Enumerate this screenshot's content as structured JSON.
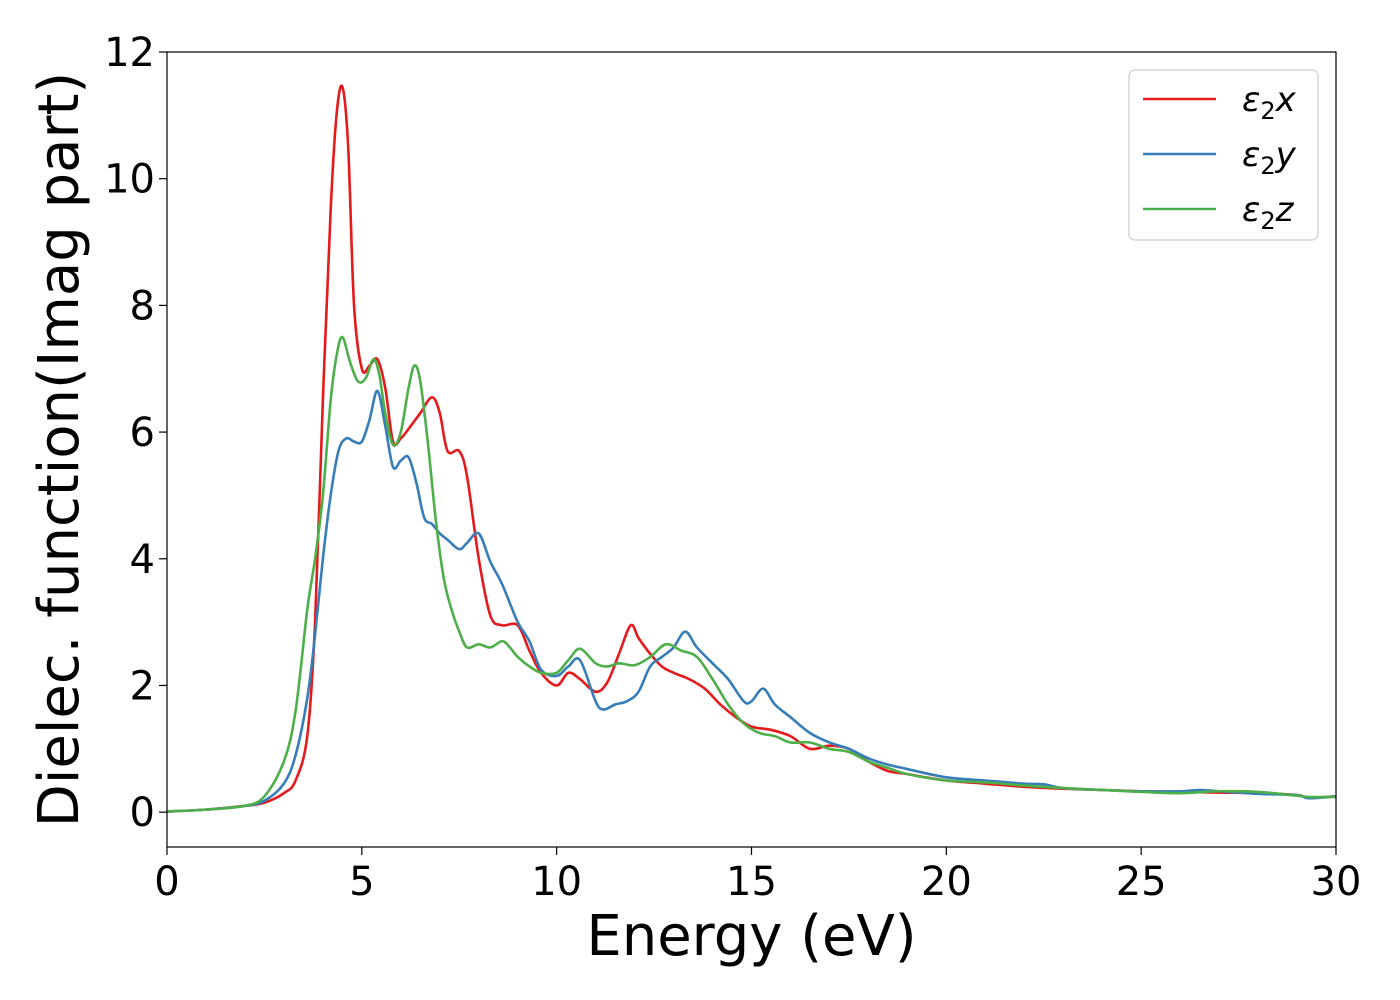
{
  "chart_data": {
    "type": "line",
    "title": "",
    "xlabel": "Energy (eV)",
    "ylabel": "Dielec. function(Imag part)",
    "xlim": [
      0,
      30
    ],
    "ylim": [
      -0.55,
      12
    ],
    "xticks": [
      "0",
      "5",
      "10",
      "15",
      "20",
      "25",
      "30"
    ],
    "yticks": [
      "0",
      "2",
      "4",
      "6",
      "8",
      "10",
      "12"
    ],
    "grid": false,
    "legend_position": "top-right",
    "series": [
      {
        "name": "ε₂x",
        "legend_base": "ε",
        "legend_sub": "2",
        "legend_suffix": "x",
        "color": "#e41a1c",
        "x": [
          0,
          1,
          2,
          2.5,
          3,
          3.3,
          3.6,
          3.8,
          4.0,
          4.2,
          4.35,
          4.5,
          4.65,
          4.8,
          5.0,
          5.2,
          5.4,
          5.6,
          5.8,
          6.0,
          6.2,
          6.5,
          6.8,
          7.0,
          7.2,
          7.5,
          7.7,
          8.0,
          8.3,
          8.6,
          9.0,
          9.3,
          9.6,
          10.0,
          10.3,
          10.6,
          11.0,
          11.3,
          11.6,
          11.9,
          12.1,
          12.4,
          12.7,
          13.0,
          13.4,
          13.8,
          14.2,
          14.6,
          15.0,
          15.5,
          16.0,
          16.5,
          17.0,
          17.5,
          18.0,
          18.5,
          19.0,
          20.0,
          21.0,
          22.0,
          23.0,
          24.0,
          25.0,
          26.0,
          27.0,
          28.0,
          29.0,
          29.3,
          30.0
        ],
        "y": [
          0.01,
          0.04,
          0.1,
          0.15,
          0.3,
          0.5,
          1.2,
          3.0,
          6.5,
          9.5,
          11.0,
          11.45,
          10.5,
          8.0,
          7.0,
          7.05,
          7.15,
          6.7,
          5.85,
          5.9,
          6.05,
          6.3,
          6.55,
          6.3,
          5.7,
          5.7,
          5.3,
          4.0,
          3.1,
          2.95,
          2.95,
          2.55,
          2.2,
          2.0,
          2.2,
          2.1,
          1.9,
          2.05,
          2.5,
          2.95,
          2.75,
          2.5,
          2.3,
          2.2,
          2.1,
          1.95,
          1.7,
          1.5,
          1.35,
          1.3,
          1.2,
          1.0,
          1.05,
          1.0,
          0.8,
          0.65,
          0.6,
          0.5,
          0.45,
          0.4,
          0.37,
          0.35,
          0.33,
          0.32,
          0.31,
          0.3,
          0.27,
          0.23,
          0.25
        ]
      },
      {
        "name": "ε₂y",
        "legend_base": "ε",
        "legend_sub": "2",
        "legend_suffix": "y",
        "color": "#377eb8",
        "x": [
          0,
          1,
          2,
          2.5,
          3,
          3.3,
          3.6,
          3.8,
          4.0,
          4.2,
          4.4,
          4.6,
          4.8,
          5.0,
          5.2,
          5.4,
          5.6,
          5.8,
          6.0,
          6.2,
          6.4,
          6.6,
          6.8,
          7.0,
          7.2,
          7.5,
          7.7,
          8.0,
          8.3,
          8.6,
          9.0,
          9.3,
          9.6,
          10.0,
          10.3,
          10.6,
          11.0,
          11.2,
          11.5,
          11.8,
          12.1,
          12.4,
          12.7,
          13.0,
          13.3,
          13.6,
          14.0,
          14.4,
          14.8,
          15.0,
          15.3,
          15.6,
          16.0,
          16.5,
          17.0,
          17.5,
          18.0,
          18.5,
          19.0,
          20.0,
          21.0,
          22.0,
          22.5,
          23.0,
          24.0,
          25.0,
          26.0,
          26.5,
          27.0,
          28.0,
          29.0,
          29.3,
          30.0
        ],
        "y": [
          0.01,
          0.04,
          0.1,
          0.18,
          0.45,
          0.9,
          1.8,
          2.8,
          4.0,
          5.0,
          5.7,
          5.9,
          5.85,
          5.85,
          6.2,
          6.65,
          6.1,
          5.45,
          5.55,
          5.6,
          5.2,
          4.65,
          4.55,
          4.4,
          4.3,
          4.15,
          4.25,
          4.4,
          3.95,
          3.6,
          3.0,
          2.7,
          2.25,
          2.15,
          2.3,
          2.4,
          1.75,
          1.62,
          1.7,
          1.75,
          1.9,
          2.3,
          2.45,
          2.6,
          2.85,
          2.6,
          2.35,
          2.1,
          1.75,
          1.75,
          1.95,
          1.7,
          1.5,
          1.25,
          1.1,
          1.0,
          0.85,
          0.75,
          0.68,
          0.55,
          0.5,
          0.45,
          0.44,
          0.38,
          0.35,
          0.33,
          0.33,
          0.35,
          0.33,
          0.29,
          0.27,
          0.22,
          0.25
        ]
      },
      {
        "name": "ε₂z",
        "legend_base": "ε",
        "legend_sub": "2",
        "legend_suffix": "z",
        "color": "#4daf4a",
        "x": [
          0,
          1,
          2,
          2.5,
          3,
          3.3,
          3.6,
          3.8,
          4.0,
          4.2,
          4.35,
          4.5,
          4.7,
          4.9,
          5.1,
          5.3,
          5.45,
          5.6,
          5.8,
          6.0,
          6.2,
          6.35,
          6.5,
          6.7,
          6.9,
          7.1,
          7.3,
          7.5,
          7.7,
          8.0,
          8.3,
          8.6,
          8.8,
          9.0,
          9.3,
          9.6,
          10.0,
          10.3,
          10.6,
          11.0,
          11.3,
          11.6,
          12.0,
          12.4,
          12.8,
          13.2,
          13.6,
          14.0,
          14.4,
          14.8,
          15.2,
          15.6,
          16.0,
          16.5,
          17.0,
          17.5,
          18.0,
          18.5,
          19.0,
          20.0,
          21.0,
          22.0,
          23.0,
          24.0,
          25.0,
          26.0,
          27.0,
          28.0,
          29.0,
          29.3,
          30.0
        ],
        "y": [
          0.01,
          0.04,
          0.1,
          0.25,
          0.8,
          1.6,
          3.2,
          4.0,
          5.0,
          6.5,
          7.2,
          7.5,
          7.1,
          6.8,
          6.85,
          7.15,
          6.9,
          6.3,
          5.8,
          6.0,
          6.7,
          7.05,
          6.8,
          5.8,
          4.6,
          3.7,
          3.2,
          2.85,
          2.6,
          2.65,
          2.6,
          2.7,
          2.6,
          2.45,
          2.3,
          2.2,
          2.2,
          2.4,
          2.58,
          2.35,
          2.3,
          2.35,
          2.32,
          2.45,
          2.65,
          2.55,
          2.45,
          2.1,
          1.7,
          1.4,
          1.25,
          1.2,
          1.1,
          1.1,
          1.0,
          0.95,
          0.8,
          0.7,
          0.6,
          0.5,
          0.47,
          0.42,
          0.38,
          0.35,
          0.32,
          0.3,
          0.33,
          0.32,
          0.26,
          0.24,
          0.24
        ]
      }
    ]
  }
}
